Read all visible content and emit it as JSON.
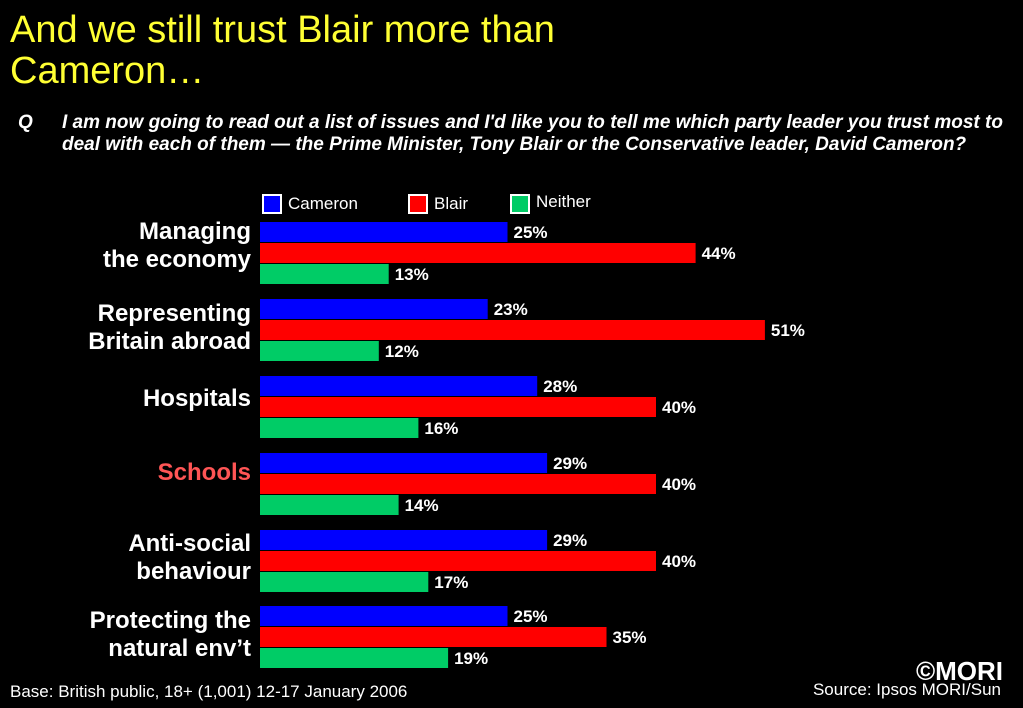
{
  "title": "And we still trust Blair more than Cameron…",
  "question": {
    "label": "Q",
    "text": "I am now going to read out a list of issues and I'd like you to tell me which party leader you trust most to deal with each of them — the Prime Minister, Tony Blair or the Conservative leader, David Cameron?"
  },
  "chart_data": {
    "type": "bar",
    "orientation": "horizontal",
    "categories": [
      "Managing the economy",
      "Representing Britain abroad",
      "Hospitals",
      "Schools",
      "Anti-social behaviour",
      "Protecting the natural env’t"
    ],
    "highlighted_category": "Schools",
    "series": [
      {
        "name": "Cameron",
        "color": "#0000ff",
        "values": [
          25,
          23,
          28,
          29,
          29,
          25
        ]
      },
      {
        "name": "Blair",
        "color": "#ff0000",
        "values": [
          44,
          51,
          40,
          40,
          40,
          35
        ]
      },
      {
        "name": "Neither",
        "color": "#00cc66",
        "values": [
          13,
          12,
          16,
          14,
          17,
          19
        ]
      }
    ],
    "value_suffix": "%",
    "legend_position": "top",
    "grid": false
  },
  "category_lines": [
    [
      "Managing",
      "the economy"
    ],
    [
      "Representing",
      "Britain abroad"
    ],
    [
      "Hospitals"
    ],
    [
      "Schools"
    ],
    [
      "Anti-social",
      "behaviour"
    ],
    [
      "Protecting the",
      "natural env’t"
    ]
  ],
  "footer": {
    "base": "Base: British public, 18+  (1,001)  12-17 January 2006",
    "source": "Source: Ipsos MORI/Sun",
    "logo": "©MORI"
  },
  "colors": {
    "title": "#ffff33",
    "highlight": "#ff5555",
    "background": "#000000"
  }
}
